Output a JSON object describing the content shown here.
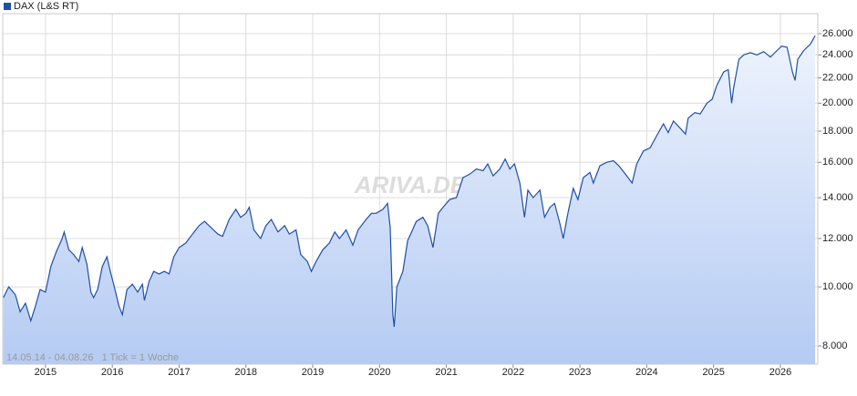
{
  "chart_data": {
    "type": "line",
    "log_scale": true,
    "grid": true,
    "legend": "top-left",
    "footnote": "14.05.14 - 04.08.26   1 Tick = 1 Woche",
    "watermark": "ARIVA.DE",
    "xlim": [
      2014.36,
      2026.56
    ],
    "xticks": [
      2015,
      2016,
      2017,
      2018,
      2019,
      2020,
      2021,
      2022,
      2023,
      2024,
      2025,
      2026
    ],
    "ylim": [
      7469,
      28040
    ],
    "yticks": [
      {
        "value": 8000,
        "label": "8.000"
      },
      {
        "value": 10000,
        "label": "10.000"
      },
      {
        "value": 12000,
        "label": "12.000"
      },
      {
        "value": 14000,
        "label": "14.000"
      },
      {
        "value": 16000,
        "label": "16.000"
      },
      {
        "value": 18000,
        "label": "18.000"
      },
      {
        "value": 20000,
        "label": "20.000"
      },
      {
        "value": 22000,
        "label": "22.000"
      },
      {
        "value": 24000,
        "label": "24.000"
      },
      {
        "value": 26000,
        "label": "26.000"
      }
    ],
    "x": [
      2014.37,
      2014.45,
      2014.55,
      2014.62,
      2014.7,
      2014.78,
      2014.85,
      2014.92,
      2015.0,
      2015.08,
      2015.16,
      2015.25,
      2015.28,
      2015.35,
      2015.42,
      2015.5,
      2015.55,
      2015.62,
      2015.68,
      2015.72,
      2015.78,
      2015.85,
      2015.92,
      2015.97,
      2016.03,
      2016.1,
      2016.15,
      2016.22,
      2016.3,
      2016.38,
      2016.45,
      2016.48,
      2016.55,
      2016.62,
      2016.7,
      2016.78,
      2016.85,
      2016.92,
      2017.0,
      2017.1,
      2017.2,
      2017.3,
      2017.38,
      2017.48,
      2017.58,
      2017.65,
      2017.75,
      2017.85,
      2017.92,
      2018.0,
      2018.05,
      2018.12,
      2018.22,
      2018.3,
      2018.38,
      2018.48,
      2018.58,
      2018.65,
      2018.75,
      2018.82,
      2018.92,
      2018.98,
      2019.05,
      2019.15,
      2019.25,
      2019.33,
      2019.4,
      2019.5,
      2019.6,
      2019.68,
      2019.8,
      2019.88,
      2019.95,
      2020.05,
      2020.12,
      2020.16,
      2020.2,
      2020.22,
      2020.26,
      2020.35,
      2020.42,
      2020.48,
      2020.55,
      2020.65,
      2020.72,
      2020.8,
      2020.88,
      2020.95,
      2021.05,
      2021.15,
      2021.25,
      2021.35,
      2021.45,
      2021.55,
      2021.62,
      2021.7,
      2021.8,
      2021.88,
      2021.95,
      2022.02,
      2022.1,
      2022.17,
      2022.22,
      2022.3,
      2022.4,
      2022.47,
      2022.55,
      2022.62,
      2022.7,
      2022.75,
      2022.82,
      2022.9,
      2022.97,
      2023.05,
      2023.15,
      2023.2,
      2023.3,
      2023.4,
      2023.5,
      2023.58,
      2023.68,
      2023.78,
      2023.85,
      2023.95,
      2024.05,
      2024.15,
      2024.25,
      2024.32,
      2024.4,
      2024.5,
      2024.58,
      2024.62,
      2024.72,
      2024.8,
      2024.9,
      2024.98,
      2025.05,
      2025.15,
      2025.22,
      2025.27,
      2025.3,
      2025.38,
      2025.45,
      2025.55,
      2025.65,
      2025.75,
      2025.85,
      2025.95,
      2026.02,
      2026.1,
      2026.18,
      2026.22,
      2026.26,
      2026.35,
      2026.45,
      2026.52
    ],
    "series": [
      {
        "name": "DAX (L&S RT)",
        "color": "#1f4fa8",
        "values": [
          9600,
          10000,
          9700,
          9100,
          9400,
          8800,
          9300,
          9900,
          9800,
          10800,
          11400,
          12000,
          12300,
          11500,
          11300,
          11000,
          11600,
          10900,
          9800,
          9600,
          9900,
          10800,
          11200,
          10600,
          10000,
          9300,
          9000,
          9900,
          10100,
          9800,
          10100,
          9500,
          10200,
          10600,
          10500,
          10600,
          10500,
          11200,
          11600,
          11800,
          12200,
          12600,
          12800,
          12500,
          12200,
          12100,
          12900,
          13400,
          13000,
          13200,
          13500,
          12400,
          12000,
          12600,
          12900,
          12300,
          12600,
          12200,
          12400,
          11300,
          11000,
          10600,
          11000,
          11500,
          11800,
          12300,
          12000,
          12400,
          11700,
          12400,
          12900,
          13200,
          13200,
          13400,
          13700,
          12500,
          9000,
          8600,
          10000,
          10600,
          11900,
          12300,
          12800,
          13000,
          12600,
          11600,
          13200,
          13500,
          13900,
          14000,
          15100,
          15300,
          15600,
          15500,
          15900,
          15200,
          15600,
          16200,
          15600,
          15900,
          14800,
          13000,
          14400,
          14000,
          14400,
          13000,
          13500,
          13700,
          12700,
          12000,
          13200,
          14500,
          13900,
          15100,
          15400,
          14800,
          15800,
          16000,
          16100,
          15800,
          15300,
          14800,
          15900,
          16700,
          16900,
          17700,
          18500,
          17900,
          18700,
          18200,
          17800,
          18900,
          19300,
          19200,
          20000,
          20300,
          21400,
          22500,
          22700,
          20000,
          21200,
          23600,
          24000,
          24200,
          24000,
          24300,
          23800,
          24400,
          24800,
          24700,
          22500,
          21800,
          23600,
          24400,
          25000,
          25800
        ]
      }
    ]
  }
}
